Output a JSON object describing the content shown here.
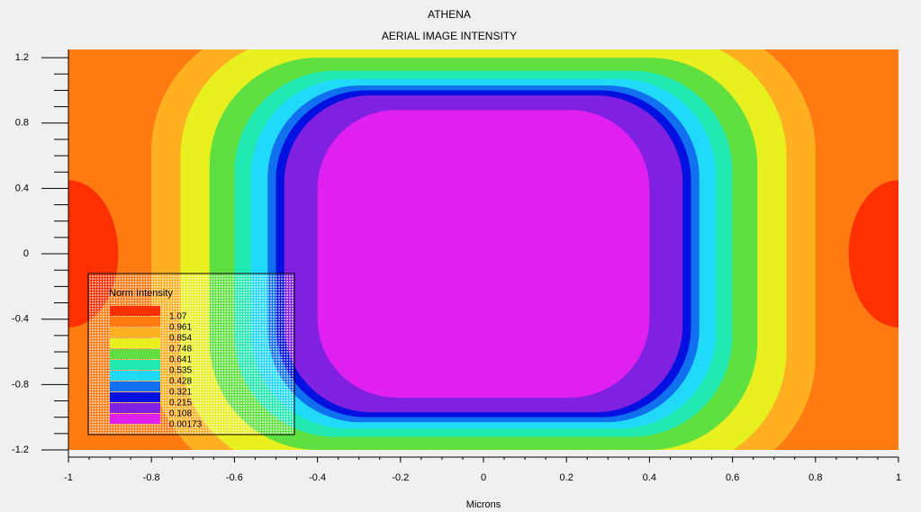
{
  "chart_data": {
    "type": "contour",
    "title": "ATHENA",
    "subtitle": "AERIAL IMAGE INTENSITY",
    "x_label": "Microns",
    "xlim": [
      -1,
      1
    ],
    "ylim": [
      -1.2,
      1.25
    ],
    "xticks": [
      -1,
      -0.8,
      -0.6,
      -0.4,
      -0.2,
      0,
      0.2,
      0.4,
      0.6,
      0.8,
      1
    ],
    "yticks": [
      -1.2,
      -0.8,
      -0.4,
      0,
      0.4,
      0.8,
      1.2
    ],
    "legend_title": "Norm Intensity",
    "levels": [
      1.07,
      0.961,
      0.854,
      0.748,
      0.641,
      0.535,
      0.428,
      0.321,
      0.215,
      0.108,
      0.00173
    ],
    "level_colors": [
      "#ff3000",
      "#ff7a10",
      "#ffb020",
      "#e8f020",
      "#60e040",
      "#20e8b0",
      "#20d8f8",
      "#1070f0",
      "#0010e0",
      "#8020e0",
      "#e020f0"
    ]
  }
}
